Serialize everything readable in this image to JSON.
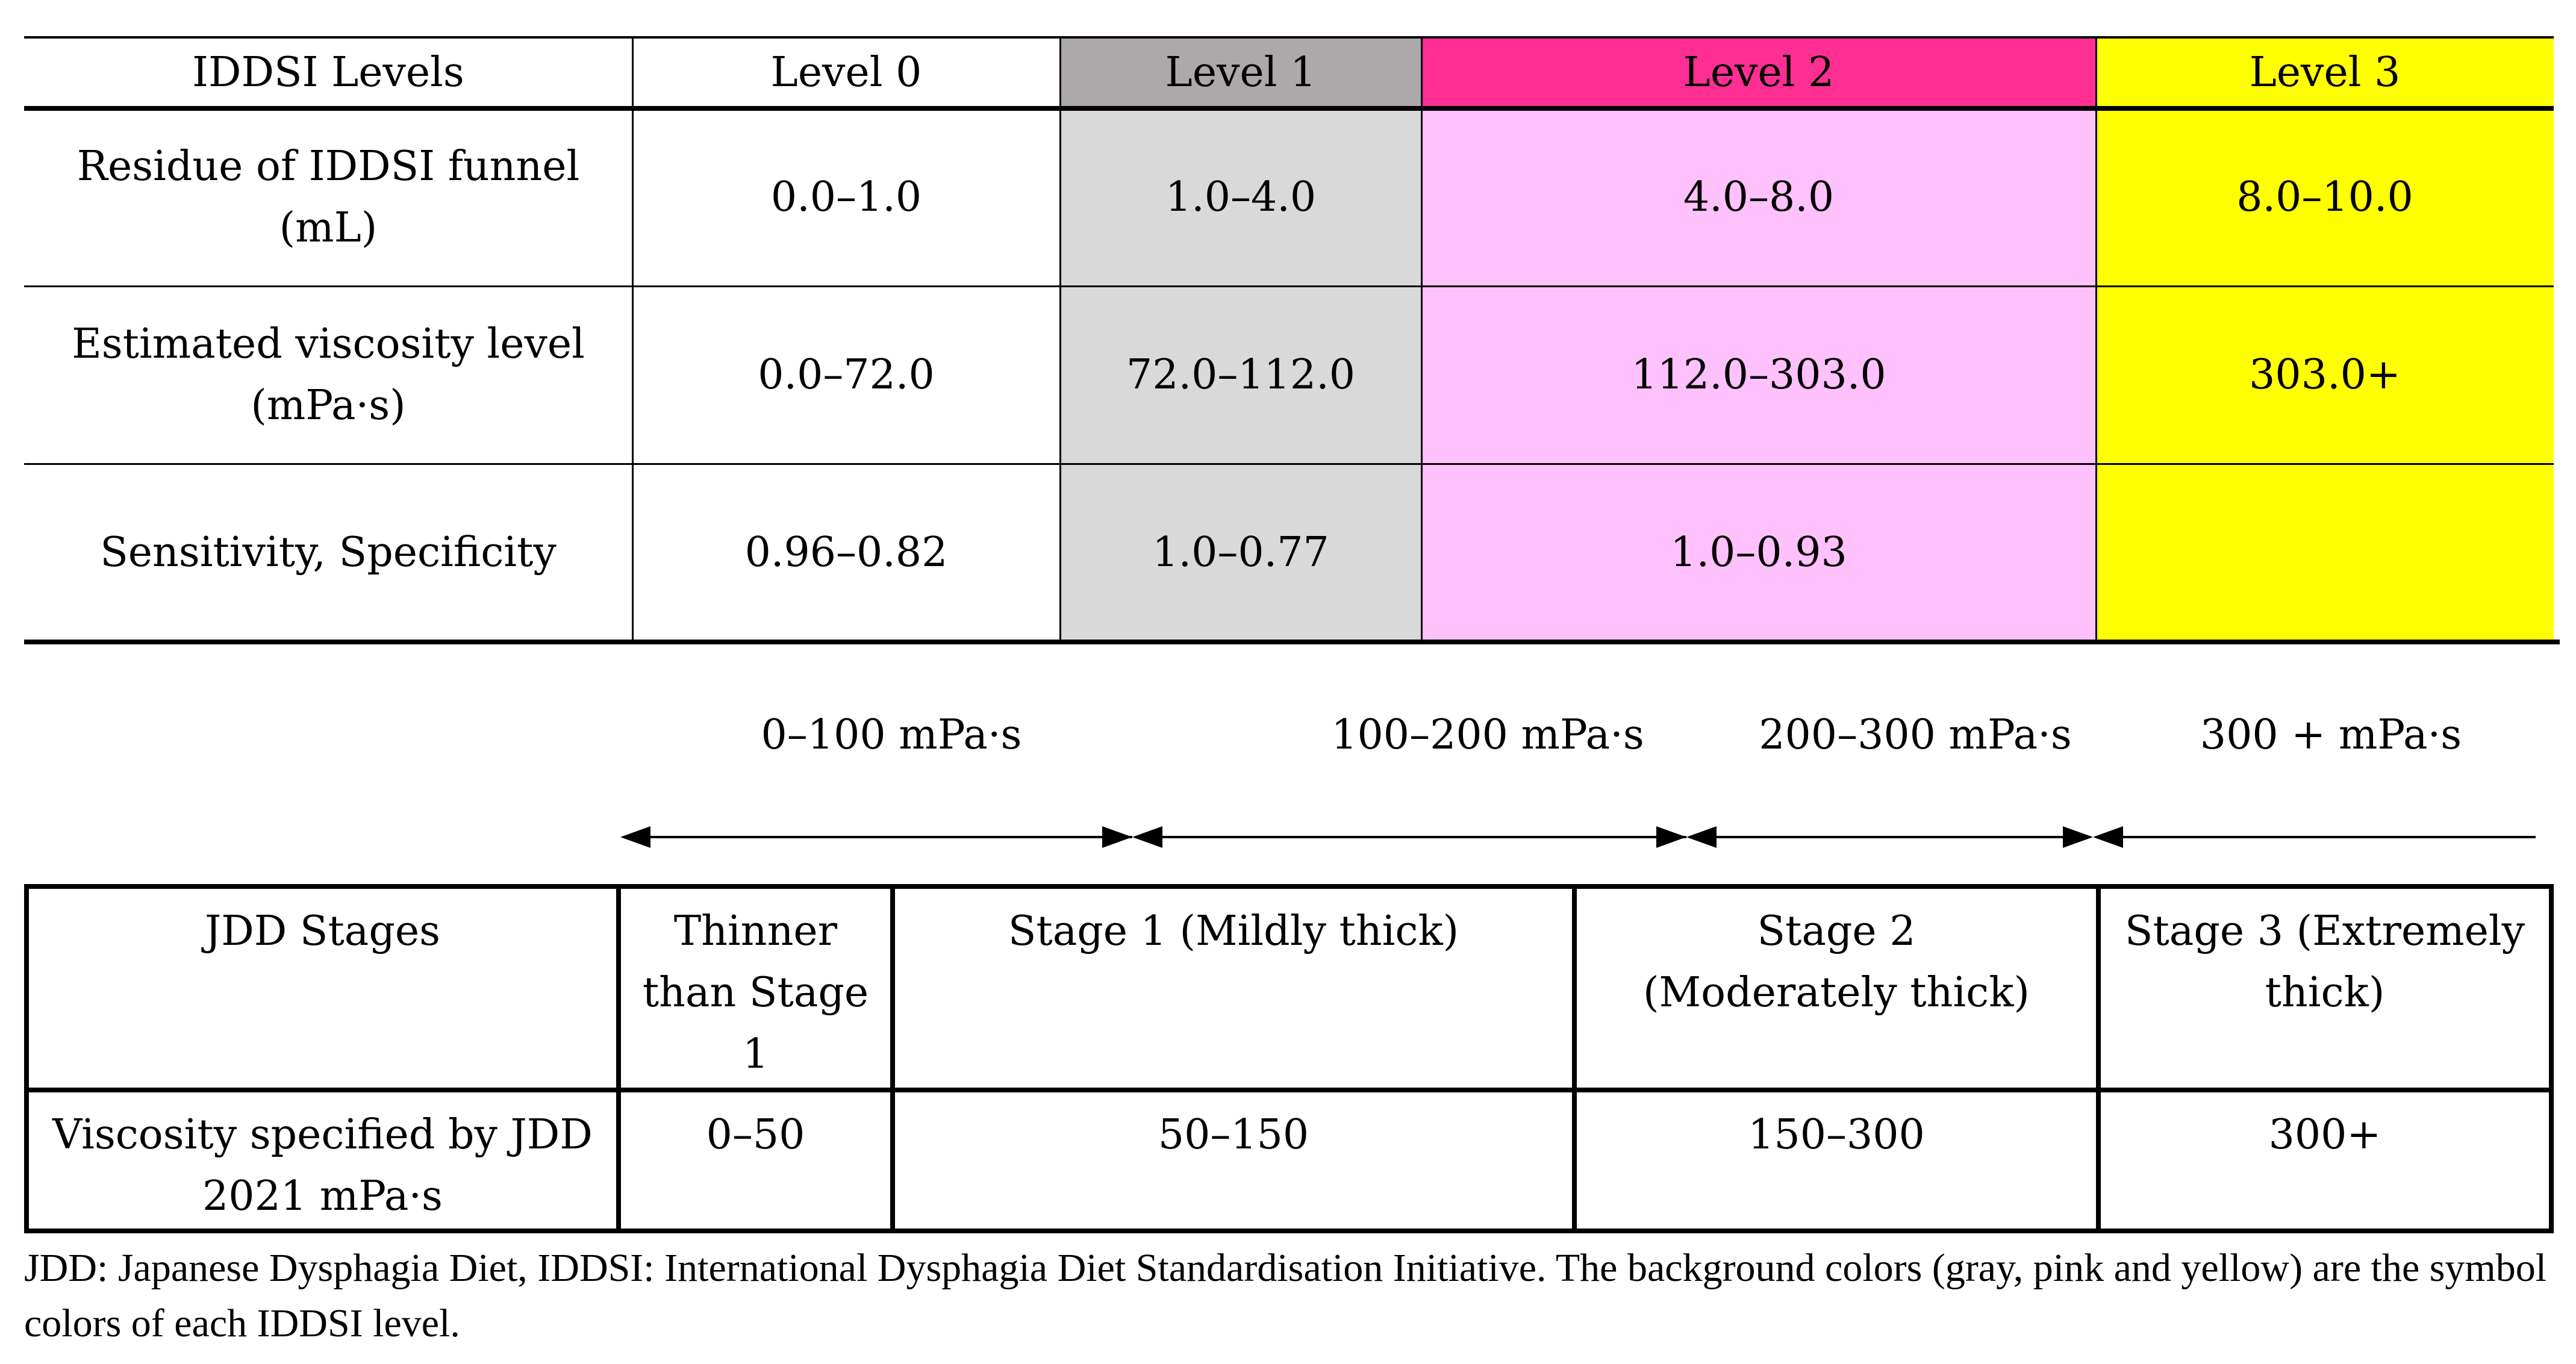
{
  "iddsi_table": {
    "header": {
      "label": "IDDSI Levels",
      "levels": [
        "Level 0",
        "Level 1",
        "Level 2",
        "Level 3"
      ]
    },
    "rows": [
      {
        "label": "Residue of IDDSI funnel (mL)",
        "values": [
          "0.0–1.0",
          "1.0–4.0",
          "4.0–8.0",
          "8.0–10.0"
        ]
      },
      {
        "label": "Estimated viscosity level (mPa·s)",
        "values": [
          "0.0–72.0",
          "72.0–112.0",
          "112.0–303.0",
          "303.0+"
        ]
      },
      {
        "label": "Sensitivity, Specificity",
        "values": [
          "0.96–0.82",
          "1.0–0.77",
          "1.0–0.93",
          ""
        ]
      }
    ],
    "colors": {
      "level1_header": "#ADA9AA",
      "level1_body": "#D9D9D9",
      "level2_header": "#FF2E93",
      "level2_body": "#FFC1FC",
      "level3_header": "#FFFF00",
      "level3_body": "#FFFF00"
    }
  },
  "viscosity_ranges": [
    "0–100 mPa·s",
    "100–200 mPa·s",
    "200–300 mPa·s",
    "300 + mPa·s"
  ],
  "jdd_table": {
    "header": {
      "label": "JDD Stages",
      "stages": [
        "Thinner than Stage 1",
        "Stage 1 (Mildly thick)",
        "Stage 2 (Moderately thick)",
        "Stage 3 (Extremely thick)"
      ]
    },
    "row": {
      "label": "Viscosity specified by JDD 2021 mPa·s",
      "values": [
        "0–50",
        "50–150",
        "150–300",
        "300+"
      ]
    }
  },
  "caption": "JDD: Japanese Dysphagia Diet, IDDSI: International Dysphagia Diet Standardisation Initiative. The background colors (gray, pink and yellow) are the symbol colors of each IDDSI level."
}
